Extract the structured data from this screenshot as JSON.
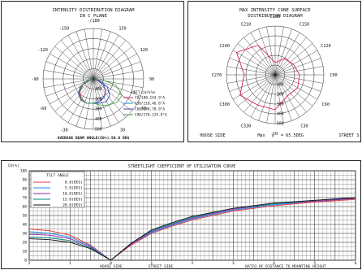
{
  "chart_data": [
    {
      "type": "polar-line",
      "title": "INTENSITY DISTRIBUTION DIAGRAM",
      "subtitle": "IN C PLANE",
      "angle_labels": [
        "-/180",
        "150",
        "-150",
        "120",
        "-120",
        "90",
        "-90",
        "-60",
        "60",
        "-30",
        "30"
      ],
      "radial_tick_labels": [
        "100",
        "200",
        "300",
        "400",
        "500"
      ],
      "unit_label": "UNIT:cd/klm",
      "legend": [
        {
          "label": "C0/180,144.9°A",
          "color": "#d81b60"
        },
        {
          "label": "C30/210,46.8°A",
          "color": "#1e88e5"
        },
        {
          "label": "C60/240,78.9°A",
          "color": "#3949ab"
        },
        {
          "label": "C90/270,129.8°A",
          "color": "#43a047"
        }
      ],
      "footer": "AVERAGE BEAM ANGLE(50%):58.0 DEG",
      "series": [
        {
          "name": "C0/180,144.9°A",
          "angle_deg": [
            -90,
            -75,
            -60,
            -45,
            -30,
            -15,
            0,
            15,
            30,
            45,
            60,
            75,
            90
          ],
          "values": [
            5,
            40,
            120,
            190,
            230,
            250,
            240,
            230,
            210,
            170,
            110,
            40,
            5
          ]
        },
        {
          "name": "C30/210,46.8°A",
          "angle_deg": [
            -90,
            -75,
            -60,
            -45,
            -30,
            -15,
            0,
            15,
            30,
            45,
            60,
            75,
            90
          ],
          "values": [
            5,
            50,
            130,
            200,
            240,
            250,
            240,
            235,
            215,
            175,
            120,
            50,
            5
          ]
        },
        {
          "name": "C60/240,78.9°A",
          "angle_deg": [
            -90,
            -75,
            -60,
            -45,
            -30,
            -15,
            0,
            15,
            30,
            45,
            60,
            75,
            90
          ],
          "values": [
            5,
            60,
            150,
            210,
            245,
            250,
            240,
            250,
            260,
            230,
            160,
            60,
            5
          ]
        },
        {
          "name": "C90/270,129.8°A",
          "angle_deg": [
            -90,
            -75,
            -60,
            -45,
            -30,
            -15,
            0,
            15,
            30,
            45,
            60,
            75,
            90
          ],
          "values": [
            5,
            50,
            140,
            200,
            240,
            250,
            240,
            270,
            300,
            330,
            330,
            230,
            60
          ]
        }
      ]
    },
    {
      "type": "polar-line",
      "title": "MAX INTENSITY CONE SURFACE",
      "subtitle": "DISTRIBUTION DIAGRAM",
      "angle_labels": [
        "C180",
        "C150",
        "C210",
        "C120",
        "C240",
        "C90",
        "C270",
        "C60",
        "C300",
        "C30",
        "C330",
        "C0"
      ],
      "radial_tick_labels": [
        "100",
        "200",
        "300",
        "400",
        "500"
      ],
      "footer_left": "HOUSE SIDE",
      "footer_center": "Max",
      "footer_gamma": "γ",
      "footer_value": "= 65.5DEG",
      "footer_right": "STREET S",
      "series": [
        {
          "name": "max cone",
          "angle_deg": [
            0,
            30,
            60,
            90,
            120,
            150,
            180,
            210,
            240,
            270,
            300,
            330
          ],
          "values": [
            430,
            300,
            320,
            300,
            260,
            230,
            150,
            420,
            550,
            380,
            500,
            430
          ],
          "color": "#d81b60"
        }
      ]
    },
    {
      "type": "line",
      "title": "STREETLIGHT COEFFICIENT OF UTILISATION CURVE",
      "ylabel": "CU(%)",
      "xlabel_left": "HOUSE SIDE",
      "xlabel_center": "STREET SIDE",
      "xlabel_right": "RATIO OF DISTANCE TO MOUNTING HEIGHT",
      "ylim": [
        0,
        100
      ],
      "y_ticks": [
        "0",
        "10",
        "20",
        "30",
        "40",
        "50",
        "60",
        "70",
        "80",
        "90",
        "100"
      ],
      "x_ticks": [
        "2",
        "1",
        "0",
        "1",
        "2",
        "3",
        "4",
        "5",
        "6"
      ],
      "legend_title": "TILT ANGLE",
      "series": [
        {
          "name": "0.0(DEG)",
          "color": "#e53935",
          "x": [
            -2,
            -1.5,
            -1,
            -0.5,
            0,
            0.5,
            1,
            1.5,
            2,
            3,
            4,
            5,
            6
          ],
          "y": [
            35,
            33,
            28,
            17,
            0,
            17,
            30,
            38,
            45,
            55,
            61,
            65,
            68
          ]
        },
        {
          "name": "5.0(DEG)",
          "color": "#1e88e5",
          "x": [
            -2,
            -1.5,
            -1,
            -0.5,
            0,
            0.5,
            1,
            1.5,
            2,
            3,
            4,
            5,
            6
          ],
          "y": [
            32,
            30,
            26,
            16,
            0,
            18,
            31,
            39,
            46,
            56,
            62,
            66,
            69
          ]
        },
        {
          "name": "10.0(DEG)",
          "color": "#8e24aa",
          "x": [
            -2,
            -1.5,
            -1,
            -0.5,
            0,
            0.5,
            1,
            1.5,
            2,
            3,
            4,
            5,
            6
          ],
          "y": [
            29,
            28,
            24,
            15,
            0,
            18,
            32,
            40,
            47,
            57,
            63,
            66,
            69
          ]
        },
        {
          "name": "15.0(DEG)",
          "color": "#00897b",
          "x": [
            -2,
            -1.5,
            -1,
            -0.5,
            0,
            0.5,
            1,
            1.5,
            2,
            3,
            4,
            5,
            6
          ],
          "y": [
            26,
            25,
            22,
            14,
            0,
            19,
            33,
            41,
            48,
            58,
            63,
            67,
            70
          ]
        },
        {
          "name": "20.0(DEG)",
          "color": "#111111",
          "x": [
            -2,
            -1.5,
            -1,
            -0.5,
            0,
            0.5,
            1,
            1.5,
            2,
            3,
            4,
            5,
            6
          ],
          "y": [
            24,
            23,
            20,
            13,
            0,
            19,
            34,
            42,
            49,
            58,
            64,
            67,
            70
          ]
        }
      ]
    }
  ]
}
